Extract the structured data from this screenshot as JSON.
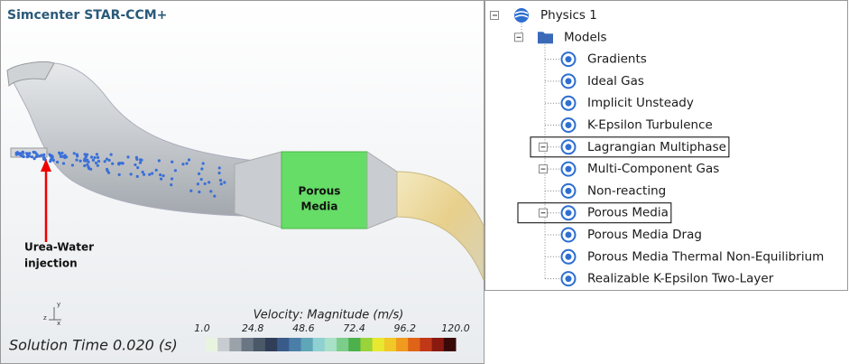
{
  "viewer": {
    "title": "Simcenter STAR-CCM+",
    "porous_label": [
      "Porous",
      "Media"
    ],
    "injection_label": [
      "Urea-Water",
      "injection"
    ],
    "axes": [
      "y",
      "z",
      "x"
    ],
    "colorbar": {
      "title": "Velocity: Magnitude (m/s)",
      "ticks": [
        "1.0",
        "24.8",
        "48.6",
        "72.4",
        "96.2",
        "120.0"
      ]
    },
    "solution_time": "Solution Time 0.020 (s)"
  },
  "tree": {
    "root": "Physics 1",
    "folder": "Models",
    "items": [
      {
        "label": "Gradients"
      },
      {
        "label": "Ideal Gas"
      },
      {
        "label": "Implicit Unsteady"
      },
      {
        "label": "K-Epsilon Turbulence"
      },
      {
        "label": "Lagrangian Multiphase",
        "expandable": true,
        "highlighted": true
      },
      {
        "label": "Multi-Component Gas",
        "expandable": true
      },
      {
        "label": "Non-reacting"
      },
      {
        "label": "Porous Media",
        "expandable": true,
        "highlighted": true
      },
      {
        "label": "Porous Media Drag"
      },
      {
        "label": "Porous Media Thermal Non-Equilibrium"
      },
      {
        "label": "Realizable K-Epsilon Two-Layer"
      }
    ]
  }
}
